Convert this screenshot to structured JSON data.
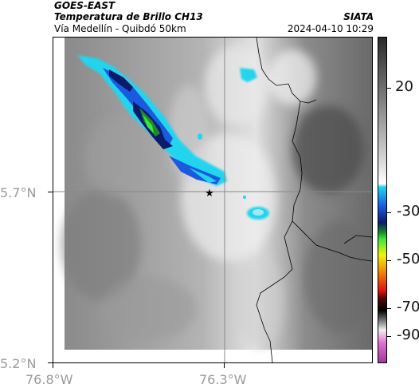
{
  "header": {
    "source": "GOES-EAST",
    "product": "Temperatura de Brillo CH13",
    "route": "Vía Medellín - Quibdó 50km",
    "agency": "SIATA",
    "datetime": "2024-04-10 10:29"
  },
  "axes": {
    "y_labels": [
      "5.7°N",
      "5.2°N"
    ],
    "x_labels": [
      "76.8°W",
      "76.3°W"
    ]
  },
  "colorbar": {
    "labels": [
      "20",
      "-30",
      "-50",
      "-70",
      "-90"
    ],
    "stops": [
      "#2a2a2a",
      "#7a7a7a",
      "#d8d8d8",
      "#ffffff",
      "#22d4ee",
      "#1a5adf",
      "#0b1a6a",
      "#1c8a2a",
      "#3ce63c",
      "#f2f20a",
      "#f08a0a",
      "#e01010",
      "#5a0a0a",
      "#000000",
      "#9a9a9a",
      "#f0f0f0",
      "#e070d0",
      "#a03aa0"
    ]
  },
  "map": {
    "marker_icon": "star-icon",
    "colors": {
      "frame": "#000000",
      "gridline": "#888888",
      "border": "#000000"
    }
  }
}
